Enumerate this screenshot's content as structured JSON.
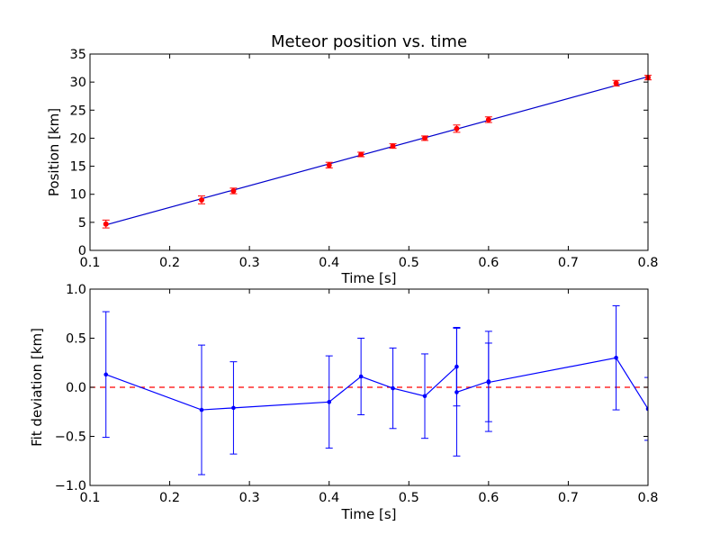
{
  "chart_data": [
    {
      "type": "scatter",
      "title": "Meteor position vs. time",
      "xlabel": "Time [s]",
      "ylabel": "Position [km]",
      "xlim": [
        0.1,
        0.8
      ],
      "ylim": [
        0,
        35
      ],
      "xticks": [
        "0.1",
        "0.2",
        "0.3",
        "0.4",
        "0.5",
        "0.6",
        "0.7",
        "0.8"
      ],
      "yticks": [
        "0",
        "5",
        "10",
        "15",
        "20",
        "25",
        "30",
        "35"
      ],
      "grid": false,
      "colors": {
        "points": "#ff0000",
        "errorbars": "#ff0000",
        "fit_line": "#0000cc"
      },
      "series": [
        {
          "x": [
            0.12,
            0.24,
            0.28,
            0.4,
            0.44,
            0.48,
            0.52,
            0.56,
            0.6,
            0.76,
            0.8
          ],
          "y": [
            4.7,
            9.0,
            10.6,
            15.2,
            17.1,
            18.6,
            20.0,
            21.7,
            23.3,
            29.8,
            30.8
          ],
          "yerr": [
            0.7,
            0.7,
            0.5,
            0.5,
            0.4,
            0.4,
            0.4,
            0.65,
            0.5,
            0.5,
            0.4
          ]
        }
      ],
      "fit_line": {
        "x": [
          0.12,
          0.8
        ],
        "y": [
          4.55,
          30.95
        ]
      }
    },
    {
      "type": "line",
      "title": "",
      "xlabel": "Time [s]",
      "ylabel": "Fit deviation [km]",
      "xlim": [
        0.1,
        0.8
      ],
      "ylim": [
        -1.0,
        1.0
      ],
      "xticks": [
        "0.1",
        "0.2",
        "0.3",
        "0.4",
        "0.5",
        "0.6",
        "0.7",
        "0.8"
      ],
      "yticks": [
        "−1.0",
        "−0.5",
        "0.0",
        "0.5",
        "1.0"
      ],
      "ytick_values": [
        -1.0,
        -0.5,
        0.0,
        0.5,
        1.0
      ],
      "grid": false,
      "colors": {
        "series": "#0000ff",
        "zero_line": "#ff0000"
      },
      "series": [
        {
          "x": [
            0.12,
            0.24,
            0.28,
            0.4,
            0.44,
            0.48,
            0.52,
            0.56,
            0.56,
            0.6,
            0.6,
            0.76,
            0.8
          ],
          "y": [
            0.13,
            -0.23,
            -0.21,
            -0.15,
            0.11,
            -0.01,
            -0.09,
            0.21,
            -0.05,
            0.06,
            0.05,
            0.3,
            -0.22
          ],
          "yerr": [
            0.64,
            0.66,
            0.47,
            0.47,
            0.39,
            0.41,
            0.43,
            0.4,
            0.65,
            0.51,
            0.4,
            0.53,
            0.32
          ]
        }
      ],
      "reference_line": {
        "y": 0.0,
        "style": "dashed"
      }
    }
  ]
}
